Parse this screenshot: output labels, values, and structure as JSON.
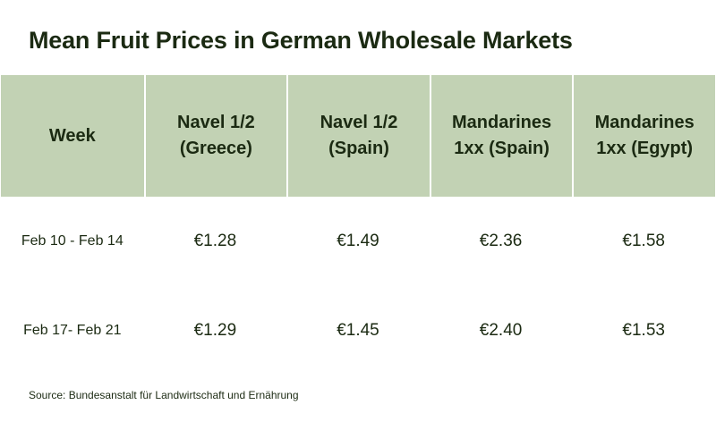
{
  "title": "Mean Fruit Prices in German Wholesale Markets",
  "source": "Source: Bundesanstalt für Landwirtschaft und Ernährung",
  "colors": {
    "header_background": "#c2d2b4",
    "text": "#1b2a12",
    "background": "#ffffff"
  },
  "chart_data": {
    "type": "table",
    "title": "Mean Fruit Prices in German Wholesale Markets",
    "columns": [
      "Week",
      "Navel 1/2 (Greece)",
      "Navel 1/2 (Spain)",
      "Mandarines 1xx (Spain)",
      "Mandarines 1xx (Egypt)"
    ],
    "rows": [
      [
        "Feb 10 - Feb 14",
        "€1.28",
        "€1.49",
        "€2.36",
        "€1.58"
      ],
      [
        "Feb 17- Feb 21",
        "€1.29",
        "€1.45",
        "€2.40",
        "€1.53"
      ]
    ],
    "values": [
      {
        "week": "Feb 10 - Feb 14",
        "prices": [
          1.28,
          1.49,
          2.36,
          1.58
        ]
      },
      {
        "week": "Feb 17- Feb 21",
        "prices": [
          1.29,
          1.45,
          2.4,
          1.53
        ]
      }
    ],
    "unit": "€"
  }
}
